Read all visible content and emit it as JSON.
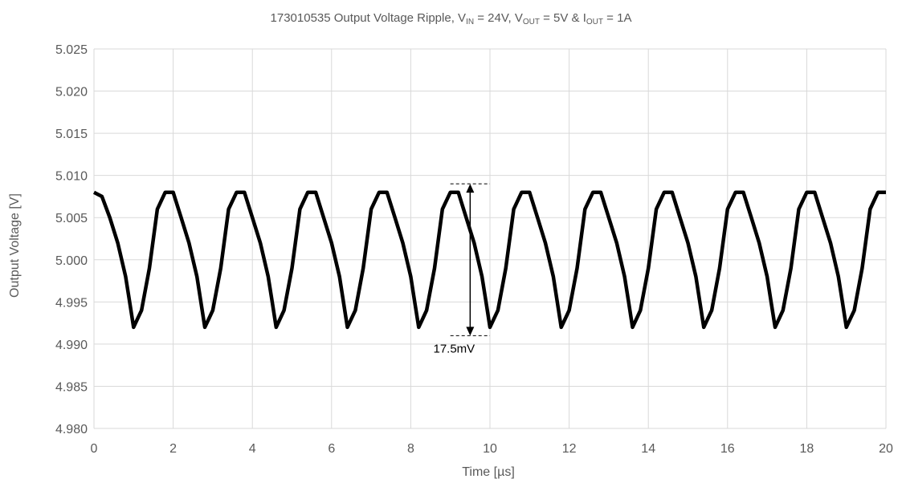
{
  "chart_data": {
    "type": "line",
    "title": {
      "part_id": "173010535  Output Voltage Ripple, ",
      "vin_v": "V",
      "vin_sub": "IN",
      "vin_val": " = 24V, ",
      "vout_v": "V",
      "vout_sub": "OUT",
      "vout_val": " = 5V & ",
      "iout_i": "I",
      "iout_sub": "OUT",
      "iout_val": " = 1A"
    },
    "xlabel": "Time [µs]",
    "ylabel": "Output Voltage [V]",
    "xlim": [
      0,
      20
    ],
    "ylim": [
      4.98,
      5.025
    ],
    "xticks": [
      0,
      2,
      4,
      6,
      8,
      10,
      12,
      14,
      16,
      18,
      20
    ],
    "yticks": [
      "5.025",
      "5.020",
      "5.015",
      "5.010",
      "5.005",
      "5.000",
      "4.995",
      "4.990",
      "4.985",
      "4.980"
    ],
    "grid": true,
    "series": [
      {
        "color": "#000000",
        "x": [
          0,
          0.2,
          0.4,
          0.6,
          0.8,
          0.9,
          1.0,
          1.1,
          1.2,
          1.4,
          1.6,
          1.8,
          2.0,
          2.2,
          2.4,
          2.6,
          2.7,
          2.8,
          2.9,
          3.0,
          3.2,
          3.4,
          3.6,
          3.8,
          4.0,
          4.2,
          4.4,
          4.5,
          4.6,
          4.7,
          4.8,
          5.0,
          5.2,
          5.4,
          5.6,
          5.8,
          6.0,
          6.2,
          6.3,
          6.4,
          6.5,
          6.6,
          6.8,
          7.0,
          7.2,
          7.4,
          7.6,
          7.8,
          8.0,
          8.1,
          8.2,
          8.3,
          8.4,
          8.6,
          8.8,
          9.0,
          9.2,
          9.4,
          9.6,
          9.8,
          9.9,
          10.0,
          10.1,
          10.2,
          10.4,
          10.6,
          10.8,
          11.0,
          11.2,
          11.4,
          11.6,
          11.7,
          11.8,
          11.9,
          12.0,
          12.2,
          12.4,
          12.6,
          12.8,
          13.0,
          13.2,
          13.4,
          13.5,
          13.6,
          13.7,
          13.8,
          14.0,
          14.2,
          14.4,
          14.6,
          14.8,
          15.0,
          15.2,
          15.3,
          15.4,
          15.5,
          15.6,
          15.8,
          16.0,
          16.2,
          16.4,
          16.6,
          16.8,
          17.0,
          17.1,
          17.2,
          17.3,
          17.4,
          17.6,
          17.8,
          18.0,
          18.2,
          18.4,
          18.6,
          18.8,
          18.9,
          19.0,
          19.1,
          19.2,
          19.4,
          19.6,
          19.8,
          20.0
        ],
        "values": [
          5.008,
          5.0075,
          5.005,
          5.002,
          4.998,
          4.995,
          4.992,
          4.993,
          4.994,
          4.999,
          5.006,
          5.008,
          5.008,
          5.005,
          5.002,
          4.998,
          4.995,
          4.992,
          4.993,
          4.994,
          4.999,
          5.006,
          5.008,
          5.008,
          5.005,
          5.002,
          4.998,
          4.995,
          4.992,
          4.993,
          4.994,
          4.999,
          5.006,
          5.008,
          5.008,
          5.005,
          5.002,
          4.998,
          4.995,
          4.992,
          4.993,
          4.994,
          4.999,
          5.006,
          5.008,
          5.008,
          5.005,
          5.002,
          4.998,
          4.995,
          4.992,
          4.993,
          4.994,
          4.999,
          5.006,
          5.008,
          5.008,
          5.005,
          5.002,
          4.998,
          4.995,
          4.992,
          4.993,
          4.994,
          4.999,
          5.006,
          5.008,
          5.008,
          5.005,
          5.002,
          4.998,
          4.995,
          4.992,
          4.993,
          4.994,
          4.999,
          5.006,
          5.008,
          5.008,
          5.005,
          5.002,
          4.998,
          4.995,
          4.992,
          4.993,
          4.994,
          4.999,
          5.006,
          5.008,
          5.008,
          5.005,
          5.002,
          4.998,
          4.995,
          4.992,
          4.993,
          4.994,
          4.999,
          5.006,
          5.008,
          5.008,
          5.005,
          5.002,
          4.998,
          4.995,
          4.992,
          4.993,
          4.994,
          4.999,
          5.006,
          5.008,
          5.008,
          5.005,
          5.002,
          4.998,
          4.995,
          4.992,
          4.993,
          4.994,
          4.999,
          5.006,
          5.008,
          5.008
        ]
      }
    ],
    "annotation": {
      "text": "17.5mV",
      "x": 9.5,
      "y_top": 5.009,
      "y_bottom": 4.991,
      "bracket_x": [
        9.0,
        10.0
      ]
    }
  }
}
